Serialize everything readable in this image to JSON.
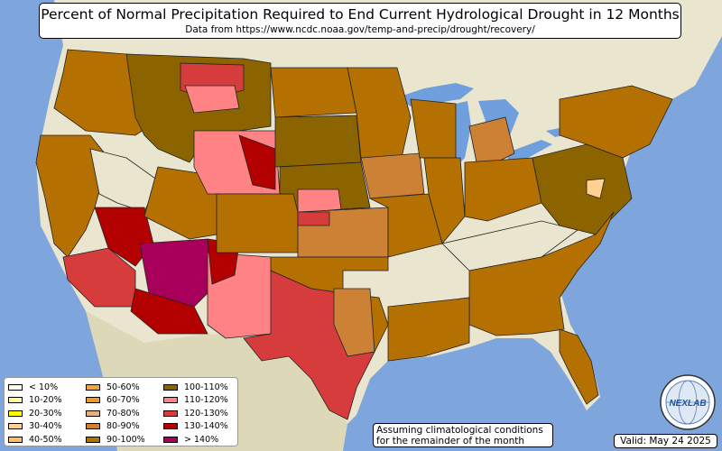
{
  "title": "Percent of Normal Precipitation Required to End Current Hydrological Drought in 12 Months",
  "subtitle": "Data from https://www.ncdc.noaa.gov/temp-and-precip/drought/recovery/",
  "note": [
    "Assuming climatological conditions",
    "for the remainder of the month"
  ],
  "valid": "Valid: May 24 2025",
  "logo_text": "NEXLAB",
  "colors": {
    "ocean": "#7ea6dc",
    "land": "#e9e5cf",
    "lakes": "#6f9fdc"
  },
  "legend": [
    {
      "label": "< 10%",
      "color": "#ffffe5"
    },
    {
      "label": "10-20%",
      "color": "#fffd9a"
    },
    {
      "label": "20-30%",
      "color": "#ffff00"
    },
    {
      "label": "30-40%",
      "color": "#ffd191"
    },
    {
      "label": "40-50%",
      "color": "#ffbd66"
    },
    {
      "label": "50-60%",
      "color": "#f6a13b"
    },
    {
      "label": "60-70%",
      "color": "#f59620"
    },
    {
      "label": "70-80%",
      "color": "#e7b07a"
    },
    {
      "label": "80-90%",
      "color": "#cc8135"
    },
    {
      "label": "90-100%",
      "color": "#b47000"
    },
    {
      "label": "100-110%",
      "color": "#8b6400"
    },
    {
      "label": "110-120%",
      "color": "#ff8284"
    },
    {
      "label": "120-130%",
      "color": "#d63c3c"
    },
    {
      "label": "130-140%",
      "color": "#b30000"
    },
    {
      "label": "> 140%",
      "color": "#a8005a"
    }
  ]
}
